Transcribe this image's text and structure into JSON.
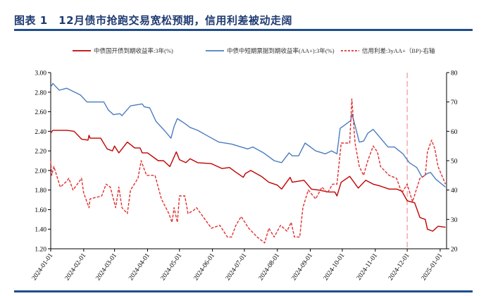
{
  "title": "图表 1　12月债市抢跑交易宽松预期，信用利差被动走阔",
  "chart_data": {
    "type": "line",
    "title": "图表 1　12月债市抢跑交易宽松预期，信用利差被动走阔",
    "xlim": [
      "2024-01-01",
      "2025-01-07"
    ],
    "x_ticks": [
      "2024-01-01",
      "2024-02-01",
      "2024-03-01",
      "2024-04-01",
      "2024-05-01",
      "2024-06-01",
      "2024-07-01",
      "2024-08-01",
      "2024-09-01",
      "2024-10-01",
      "2024-11-01",
      "2024-12-01",
      "2025-01-01"
    ],
    "y_left": {
      "range": [
        1.2,
        3.0
      ],
      "ticks": [
        "1.20",
        "1.40",
        "1.60",
        "1.80",
        "2.00",
        "2.20",
        "2.40",
        "2.60",
        "2.80",
        "3.00"
      ]
    },
    "y_right": {
      "range": [
        20,
        80
      ],
      "ticks": [
        "20",
        "30",
        "40",
        "50",
        "60",
        "70",
        "80"
      ]
    },
    "grid": false,
    "legend": "top",
    "reference_line": {
      "x": "2024-12-01",
      "color": "#f08080",
      "style": "dashed"
    },
    "series": [
      {
        "name": "中债国开债到期收益率:3年(%)",
        "axis": "left",
        "color": "#c00000",
        "style": "solid",
        "x": [
          "2024-01-01",
          "2024-01-03",
          "2024-01-16",
          "2024-01-23",
          "2024-01-30",
          "2024-02-05",
          "2024-02-06",
          "2024-02-07",
          "2024-02-17",
          "2024-02-23",
          "2024-02-28",
          "2024-03-01",
          "2024-03-05",
          "2024-03-08",
          "2024-03-13",
          "2024-03-20",
          "2024-03-25",
          "2024-03-27",
          "2024-04-01",
          "2024-04-11",
          "2024-04-16",
          "2024-04-22",
          "2024-04-28",
          "2024-05-01",
          "2024-05-07",
          "2024-05-11",
          "2024-05-18",
          "2024-05-31",
          "2024-06-10",
          "2024-06-17",
          "2024-06-22",
          "2024-06-30",
          "2024-07-02",
          "2024-07-07",
          "2024-07-17",
          "2024-07-24",
          "2024-08-01",
          "2024-08-05",
          "2024-08-13",
          "2024-08-15",
          "2024-08-26",
          "2024-09-02",
          "2024-09-09",
          "2024-09-18",
          "2024-09-24",
          "2024-09-26",
          "2024-09-30",
          "2024-10-08",
          "2024-10-16",
          "2024-10-23",
          "2024-10-30",
          "2024-11-06",
          "2024-11-14",
          "2024-11-21",
          "2024-11-26",
          "2024-12-01",
          "2024-12-08",
          "2024-12-13",
          "2024-12-18",
          "2024-12-20",
          "2024-12-25",
          "2024-12-30",
          "2025-01-06"
        ],
        "y": [
          2.38,
          2.41,
          2.41,
          2.4,
          2.32,
          2.31,
          2.36,
          2.33,
          2.33,
          2.22,
          2.2,
          2.25,
          2.18,
          2.22,
          2.29,
          2.23,
          2.23,
          2.18,
          2.18,
          2.1,
          2.1,
          2.04,
          2.19,
          2.11,
          2.08,
          2.12,
          2.08,
          2.07,
          2.02,
          2.03,
          1.99,
          1.93,
          1.97,
          2.0,
          1.94,
          1.88,
          1.85,
          1.81,
          1.93,
          1.88,
          1.9,
          1.81,
          1.8,
          1.78,
          1.78,
          1.74,
          1.88,
          1.94,
          1.82,
          1.9,
          1.86,
          1.84,
          1.81,
          1.81,
          1.79,
          1.69,
          1.67,
          1.52,
          1.5,
          1.4,
          1.38,
          1.43,
          1.42
        ]
      },
      {
        "name": "中债中短期票据到期收益率(AA+):3年(%)",
        "axis": "left",
        "color": "#4a7cc0",
        "style": "solid",
        "x": [
          "2024-01-01",
          "2024-01-03",
          "2024-01-09",
          "2024-01-16",
          "2024-01-29",
          "2024-02-04",
          "2024-02-20",
          "2024-02-24",
          "2024-02-29",
          "2024-03-06",
          "2024-03-08",
          "2024-03-16",
          "2024-03-27",
          "2024-03-29",
          "2024-04-03",
          "2024-04-09",
          "2024-04-16",
          "2024-04-23",
          "2024-04-26",
          "2024-04-29",
          "2024-05-06",
          "2024-05-11",
          "2024-05-18",
          "2024-05-28",
          "2024-06-07",
          "2024-06-19",
          "2024-07-04",
          "2024-07-09",
          "2024-07-19",
          "2024-07-29",
          "2024-08-05",
          "2024-08-12",
          "2024-08-15",
          "2024-08-21",
          "2024-08-27",
          "2024-09-06",
          "2024-09-15",
          "2024-09-21",
          "2024-09-26",
          "2024-09-29",
          "2024-10-09",
          "2024-10-10",
          "2024-10-13",
          "2024-10-17",
          "2024-10-21",
          "2024-10-25",
          "2024-10-30",
          "2024-11-06",
          "2024-11-13",
          "2024-11-19",
          "2024-11-27",
          "2024-12-03",
          "2024-12-10",
          "2024-12-15",
          "2024-12-20",
          "2024-12-23",
          "2024-12-28",
          "2025-01-06"
        ],
        "y": [
          2.85,
          2.89,
          2.82,
          2.84,
          2.77,
          2.7,
          2.7,
          2.62,
          2.57,
          2.58,
          2.56,
          2.66,
          2.68,
          2.65,
          2.64,
          2.5,
          2.42,
          2.33,
          2.45,
          2.53,
          2.48,
          2.44,
          2.41,
          2.35,
          2.29,
          2.27,
          2.22,
          2.24,
          2.18,
          2.1,
          2.08,
          2.18,
          2.15,
          2.15,
          2.28,
          2.2,
          2.17,
          2.2,
          2.17,
          2.43,
          2.51,
          2.58,
          2.46,
          2.29,
          2.3,
          2.38,
          2.42,
          2.33,
          2.24,
          2.24,
          2.17,
          2.08,
          2.03,
          1.93,
          1.97,
          1.98,
          1.91,
          1.83
        ]
      },
      {
        "name": "信用利差:3yAA+（BP)-右轴",
        "axis": "right",
        "color": "#e03030",
        "style": "dashed",
        "x": [
          "2024-01-01",
          "2024-01-02",
          "2024-01-04",
          "2024-01-10",
          "2024-01-16",
          "2024-01-18",
          "2024-01-22",
          "2024-01-30",
          "2024-02-01",
          "2024-02-06",
          "2024-02-07",
          "2024-02-18",
          "2024-02-22",
          "2024-02-26",
          "2024-03-02",
          "2024-03-05",
          "2024-03-08",
          "2024-03-13",
          "2024-03-16",
          "2024-03-23",
          "2024-03-26",
          "2024-03-29",
          "2024-03-31",
          "2024-04-08",
          "2024-04-14",
          "2024-04-21",
          "2024-04-24",
          "2024-04-26",
          "2024-04-29",
          "2024-05-01",
          "2024-05-06",
          "2024-05-09",
          "2024-05-14",
          "2024-05-17",
          "2024-05-25",
          "2024-05-31",
          "2024-06-08",
          "2024-06-15",
          "2024-06-19",
          "2024-06-23",
          "2024-06-28",
          "2024-07-05",
          "2024-07-13",
          "2024-07-20",
          "2024-07-24",
          "2024-07-29",
          "2024-08-04",
          "2024-08-10",
          "2024-08-14",
          "2024-08-17",
          "2024-08-22",
          "2024-08-25",
          "2024-08-30",
          "2024-09-06",
          "2024-09-12",
          "2024-09-17",
          "2024-09-22",
          "2024-09-26",
          "2024-09-30",
          "2024-10-08",
          "2024-10-10",
          "2024-10-13",
          "2024-10-17",
          "2024-10-21",
          "2024-10-25",
          "2024-10-30",
          "2024-11-03",
          "2024-11-06",
          "2024-11-14",
          "2024-11-21",
          "2024-11-26",
          "2024-12-01",
          "2024-12-06",
          "2024-12-13",
          "2024-12-18",
          "2024-12-20",
          "2024-12-24",
          "2024-12-27",
          "2024-12-30",
          "2025-01-06"
        ],
        "y": [
          50,
          45,
          48,
          41,
          43,
          44,
          40,
          44,
          39,
          34,
          37,
          38,
          42,
          41,
          34,
          41,
          34,
          32,
          40,
          44,
          50,
          47,
          45,
          45,
          37,
          32,
          29,
          34,
          29,
          38,
          38,
          32,
          33,
          34,
          30,
          27,
          28,
          24,
          24,
          28,
          31,
          27,
          24,
          22,
          27,
          24,
          28,
          26,
          29,
          24,
          24,
          34,
          40,
          37,
          41,
          39,
          42,
          42,
          56,
          56,
          71,
          56,
          48,
          45,
          50,
          55,
          53,
          48,
          45,
          44,
          39,
          42,
          36,
          44,
          45,
          53,
          57,
          54,
          48,
          42
        ]
      }
    ]
  }
}
